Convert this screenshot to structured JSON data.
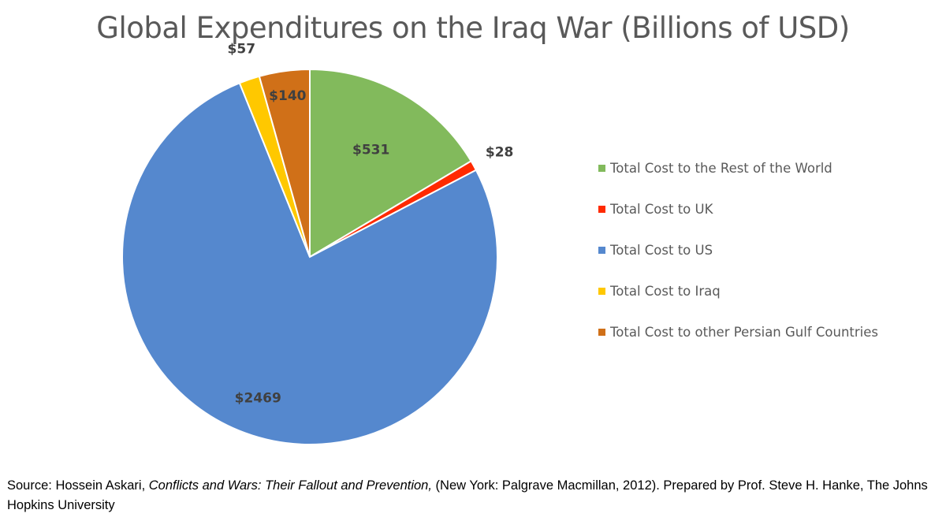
{
  "chart_data": {
    "type": "pie",
    "title": "Global Expenditures on the Iraq War (Billions of USD)",
    "start_angle": "12 o'clock",
    "direction": "clockwise",
    "legend_position": "right",
    "series": [
      {
        "name": "Total Cost to the Rest of the World",
        "value": 531,
        "label": "$531",
        "color": "#82BA5C"
      },
      {
        "name": "Total Cost to UK",
        "value": 28,
        "label": "$28",
        "color": "#FF2A00"
      },
      {
        "name": "Total Cost to US",
        "value": 2469,
        "label": "$2469",
        "color": "#5588CE"
      },
      {
        "name": "Total Cost to Iraq",
        "value": 57,
        "label": "$57",
        "color": "#FFC800"
      },
      {
        "name": "Total Cost to other Persian Gulf Countries",
        "value": 140,
        "label": "$140",
        "color": "#D07018"
      }
    ]
  },
  "source": {
    "prefix": "Source: Hossein Askari, ",
    "book_title": "Conflicts and Wars: Their Fallout and Prevention,",
    "suffix": " (New York: Palgrave Macmillan, 2012). Prepared by Prof. Steve H. Hanke, The Johns Hopkins University"
  }
}
